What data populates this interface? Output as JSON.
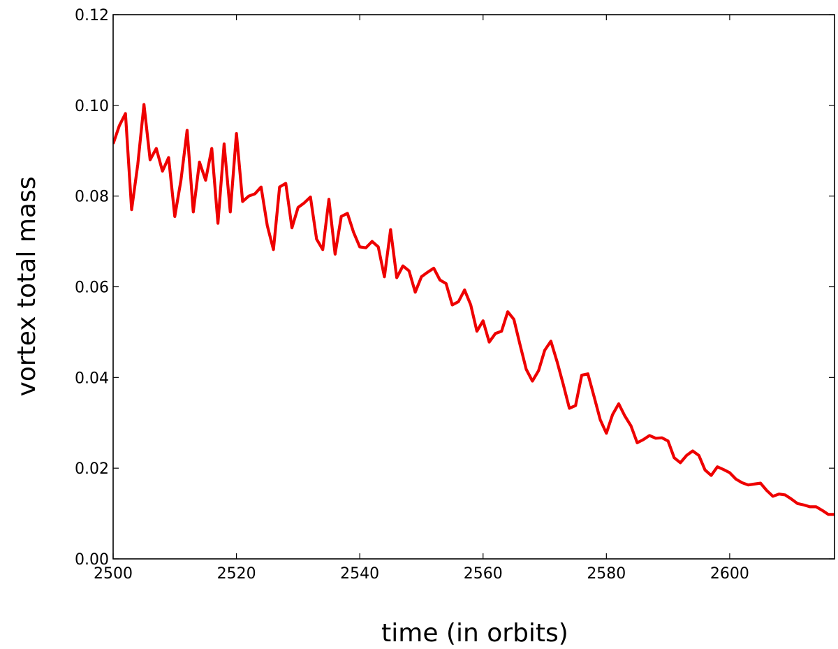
{
  "chart_data": {
    "type": "line",
    "title": "",
    "xlabel": "time (in orbits)",
    "ylabel": "vortex total mass",
    "xlim": [
      2500,
      2617
    ],
    "ylim": [
      0,
      0.12
    ],
    "xticks": [
      2500,
      2520,
      2540,
      2560,
      2580,
      2600
    ],
    "xtick_labels": [
      "2500",
      "2520",
      "2540",
      "2560",
      "2580",
      "2600"
    ],
    "yticks": [
      0,
      0.02,
      0.04,
      0.06,
      0.08,
      0.1,
      0.12
    ],
    "ytick_labels": [
      "0.00",
      "0.02",
      "0.04",
      "0.06",
      "0.08",
      "0.10",
      "0.12"
    ],
    "grid": false,
    "legend": "none",
    "series": [
      {
        "color": "#ee0000",
        "x": [
          2500,
          2501,
          2502,
          2503,
          2504,
          2505,
          2506,
          2507,
          2508,
          2509,
          2510,
          2511,
          2512,
          2513,
          2514,
          2515,
          2516,
          2517,
          2518,
          2519,
          2520,
          2521,
          2522,
          2523,
          2524,
          2525,
          2526,
          2527,
          2528,
          2529,
          2530,
          2531,
          2532,
          2533,
          2534,
          2535,
          2536,
          2537,
          2538,
          2539,
          2540,
          2541,
          2542,
          2543,
          2544,
          2545,
          2546,
          2547,
          2548,
          2549,
          2550,
          2551,
          2552,
          2553,
          2554,
          2555,
          2556,
          2557,
          2558,
          2559,
          2560,
          2561,
          2562,
          2563,
          2564,
          2565,
          2566,
          2567,
          2568,
          2569,
          2570,
          2571,
          2572,
          2573,
          2574,
          2575,
          2576,
          2577,
          2578,
          2579,
          2580,
          2581,
          2582,
          2583,
          2584,
          2585,
          2586,
          2587,
          2588,
          2589,
          2590,
          2591,
          2592,
          2593,
          2594,
          2595,
          2596,
          2597,
          2598,
          2599,
          2600,
          2601,
          2602,
          2603,
          2604,
          2605,
          2606,
          2607,
          2608,
          2609,
          2610,
          2611,
          2612,
          2613,
          2614,
          2615,
          2616,
          2617
        ],
        "y": [
          0.0915,
          0.0955,
          0.0982,
          0.077,
          0.087,
          0.1002,
          0.088,
          0.0905,
          0.0855,
          0.0885,
          0.0755,
          0.0835,
          0.0945,
          0.0765,
          0.0875,
          0.0835,
          0.0905,
          0.074,
          0.0915,
          0.0765,
          0.0938,
          0.0788,
          0.08,
          0.0805,
          0.082,
          0.0735,
          0.0682,
          0.082,
          0.0828,
          0.073,
          0.0775,
          0.0785,
          0.0798,
          0.0705,
          0.0682,
          0.0793,
          0.0672,
          0.0755,
          0.0762,
          0.072,
          0.0688,
          0.0686,
          0.07,
          0.0688,
          0.0622,
          0.0726,
          0.062,
          0.0646,
          0.0635,
          0.0588,
          0.0622,
          0.0632,
          0.0641,
          0.0615,
          0.0607,
          0.056,
          0.0567,
          0.0593,
          0.056,
          0.0502,
          0.0525,
          0.0478,
          0.0497,
          0.0502,
          0.0545,
          0.0528,
          0.0472,
          0.0418,
          0.0392,
          0.0415,
          0.046,
          0.048,
          0.0435,
          0.0385,
          0.0332,
          0.0338,
          0.0405,
          0.0408,
          0.0358,
          0.0307,
          0.0277,
          0.0318,
          0.0342,
          0.0315,
          0.0293,
          0.0256,
          0.0263,
          0.0272,
          0.0266,
          0.0267,
          0.026,
          0.0223,
          0.0212,
          0.0228,
          0.0238,
          0.0228,
          0.0196,
          0.0184,
          0.0203,
          0.0197,
          0.019,
          0.0176,
          0.0168,
          0.0163,
          0.0165,
          0.0167,
          0.0151,
          0.0138,
          0.0143,
          0.0141,
          0.0132,
          0.0122,
          0.0119,
          0.0115,
          0.0115,
          0.0107,
          0.0098,
          0.0098
        ]
      }
    ]
  }
}
